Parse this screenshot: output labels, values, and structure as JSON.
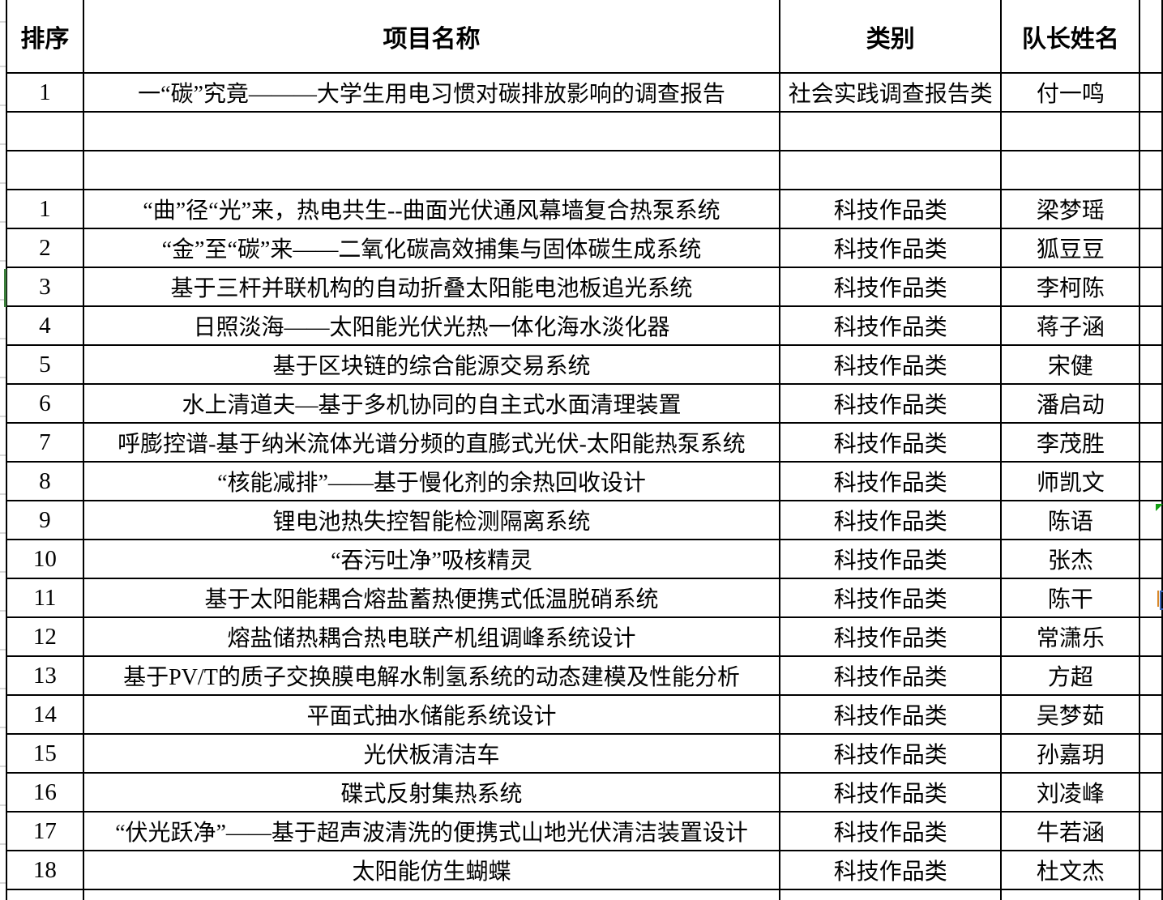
{
  "table": {
    "columns": [
      "排序",
      "项目名称",
      "类别",
      "队长姓名"
    ],
    "rows": [
      {
        "rank": "1",
        "project": "一“碳”究竟———大学生用电习惯对碳排放影响的调查报告",
        "category": "社会实践调查报告类",
        "leader": "付一鸣"
      },
      {
        "rank": "",
        "project": "",
        "category": "",
        "leader": ""
      },
      {
        "rank": "",
        "project": "",
        "category": "",
        "leader": ""
      },
      {
        "rank": "1",
        "project": "“曲”径“光”来，热电共生--曲面光伏通风幕墙复合热泵系统",
        "category": "科技作品类",
        "leader": "梁梦瑶"
      },
      {
        "rank": "2",
        "project": "“金”至“碳”来——二氧化碳高效捕集与固体碳生成系统",
        "category": "科技作品类",
        "leader": "狐豆豆"
      },
      {
        "rank": "3",
        "project": "基于三杆并联机构的自动折叠太阳能电池板追光系统",
        "category": "科技作品类",
        "leader": "李柯陈"
      },
      {
        "rank": "4",
        "project": "日照淡海——太阳能光伏光热一体化海水淡化器",
        "category": "科技作品类",
        "leader": "蒋子涵"
      },
      {
        "rank": "5",
        "project": "基于区块链的综合能源交易系统",
        "category": "科技作品类",
        "leader": "宋健"
      },
      {
        "rank": "6",
        "project": "水上清道夫—基于多机协同的自主式水面清理装置",
        "category": "科技作品类",
        "leader": "潘启动"
      },
      {
        "rank": "7",
        "project": "呼膨控谱-基于纳米流体光谱分频的直膨式光伏-太阳能热泵系统",
        "category": "科技作品类",
        "leader": "李茂胜"
      },
      {
        "rank": "8",
        "project": "“核能减排”——基于慢化剂的余热回收设计",
        "category": "科技作品类",
        "leader": "师凯文"
      },
      {
        "rank": "9",
        "project": "锂电池热失控智能检测隔离系统",
        "category": "科技作品类",
        "leader": "陈语"
      },
      {
        "rank": "10",
        "project": "“吞污吐净”吸核精灵",
        "category": "科技作品类",
        "leader": "张杰"
      },
      {
        "rank": "11",
        "project": "基于太阳能耦合熔盐蓄热便携式低温脱硝系统",
        "category": "科技作品类",
        "leader": "陈干"
      },
      {
        "rank": "12",
        "project": "熔盐储热耦合热电联产机组调峰系统设计",
        "category": "科技作品类",
        "leader": "常潇乐"
      },
      {
        "rank": "13",
        "project": "基于PV/T的质子交换膜电解水制氢系统的动态建模及性能分析",
        "category": "科技作品类",
        "leader": "方超"
      },
      {
        "rank": "14",
        "project": "平面式抽水储能系统设计",
        "category": "科技作品类",
        "leader": "吴梦茹"
      },
      {
        "rank": "15",
        "project": "光伏板清洁车",
        "category": "科技作品类",
        "leader": "孙嘉玥"
      },
      {
        "rank": "16",
        "project": "碟式反射集热系统",
        "category": "科技作品类",
        "leader": "刘凌峰"
      },
      {
        "rank": "17",
        "project": "“伏光跃净”——基于超声波清洗的便携式山地光伏清洁装置设计",
        "category": "科技作品类",
        "leader": "牛若涵"
      },
      {
        "rank": "18",
        "project": "太阳能仿生蝴蝶",
        "category": "科技作品类",
        "leader": "杜文杰"
      }
    ],
    "markers": {
      "selection_bar": {
        "row_index": 5,
        "color": "#3A7D3A"
      },
      "comment_triangle": {
        "row_index": 11,
        "color": "#12A012"
      },
      "edge_fragment": {
        "row_index": 13,
        "orange": "#D8882A",
        "blue": "#3B63B7"
      }
    },
    "border_color": "#000000",
    "gridline_color": "#d7d7d7"
  }
}
